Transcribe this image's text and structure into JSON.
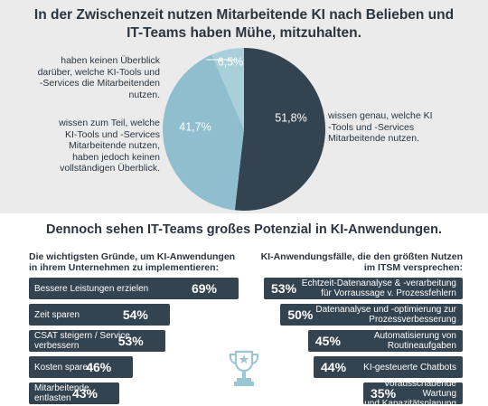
{
  "chart_data": [
    {
      "type": "pie",
      "title": "In der Zwischenzeit nutzen Mitarbeitende KI nach Belieben und IT-Teams haben Mühe, mitzuhalten.",
      "slices": [
        {
          "label_display": "51,8%",
          "value": 51.8,
          "description": "wissen genau, welche KI -Tools und -Services Mitarbeitende nutzen.",
          "color": "#33434f"
        },
        {
          "label_display": "41,7%",
          "value": 41.7,
          "description": "wissen zum Teil, welche KI-Tools und -Services Mitarbeitende nutzen, haben jedoch keinen vollständigen Überblick.",
          "color": "#8fbfcf"
        },
        {
          "label_display": "6,5%",
          "value": 6.5,
          "description": "haben keinen Überblick darüber, welche KI-Tools und -Services die Mitarbeitenden nutzen.",
          "color": "#a9cfdb"
        }
      ]
    },
    {
      "type": "bar",
      "title": "Die wichtigsten Gründe, um KI-Anwendungen in ihrem Unternehmen zu implementieren:",
      "categories": [
        "Bessere Leistungen erzielen",
        "Zeit sparen",
        "CSAT steigern / Service verbessern",
        "Kosten sparen",
        "Mitarbeitende entlasten"
      ],
      "category_lines": [
        [
          "Bessere Leistungen erzielen"
        ],
        [
          "Zeit sparen"
        ],
        [
          "CSAT steigern / Service",
          "verbessern"
        ],
        [
          "Kosten sparen"
        ],
        [
          "Mitarbeitende",
          "entlasten"
        ]
      ],
      "values": [
        69,
        54,
        53,
        46,
        43
      ],
      "value_labels": [
        "69%",
        "54%",
        "53%",
        "46%",
        "43%"
      ]
    },
    {
      "type": "bar",
      "title": "KI-Anwendungsfälle, die den größten Nutzen im ITSM versprechen:",
      "categories": [
        "Echtzeit-Datenanalyse & -verarbeitung für Vorraussage v. Prozessfehlern",
        "Datenanalyse und -optimierung zur Prozessverbesserung",
        "Automatisierung von Routineaufgaben",
        "KI-gesteuerte Chatbots",
        "Vorausschauende Wartung und Kapazitätsplanung"
      ],
      "category_lines": [
        [
          "Echtzeit-Datenanalyse & -verarbeitung",
          "für Vorraussage v. Prozessfehlern"
        ],
        [
          "Datenanalyse und -optimierung zur",
          "Prozessverbesserung"
        ],
        [
          "Automatisierung von",
          "Routineaufgaben"
        ],
        [
          "KI-gesteuerte Chatbots"
        ],
        [
          "Vorausschauende Wartung",
          "und Kapazitätsplanung"
        ]
      ],
      "values": [
        53,
        50,
        45,
        44,
        35
      ],
      "value_labels": [
        "53%",
        "50%",
        "45%",
        "44%",
        "35%"
      ]
    }
  ],
  "headline_lines": [
    "In der Zwischenzeit nutzen Mitarbeitende KI nach Belieben und",
    "IT-Teams haben Mühe, mitzuhalten."
  ],
  "annotations": {
    "top_left_lines": [
      "haben keinen Überblick",
      "darüber, welche KI-Tools und",
      "-Services die Mitarbeitenden",
      "nutzen."
    ],
    "mid_left_lines": [
      "wissen zum Teil, welche",
      "KI-Tools und -Services",
      "Mitarbeitende nutzen,",
      "haben jedoch keinen",
      "vollständigen Überblick."
    ],
    "right_lines": [
      "wissen genau, welche KI",
      "-Tools und -Services",
      "Mitarbeitende nutzen."
    ]
  },
  "subheadline": "Dennoch sehen IT-Teams großes Potenzial in KI-Anwendungen.",
  "left_title_lines": [
    "Die wichtigsten Gründe, um KI-Anwendungen",
    "in ihrem Unternehmen zu implementieren:"
  ],
  "right_title_lines": [
    "KI-Anwendungsfälle, die den größten Nutzen",
    "im ITSM versprechen:"
  ],
  "colors": {
    "dark": "#33434f",
    "mid": "#8fbfcf",
    "light": "#a9cfdb",
    "background_top": "#ebebeb"
  },
  "icon": "trophy-icon"
}
